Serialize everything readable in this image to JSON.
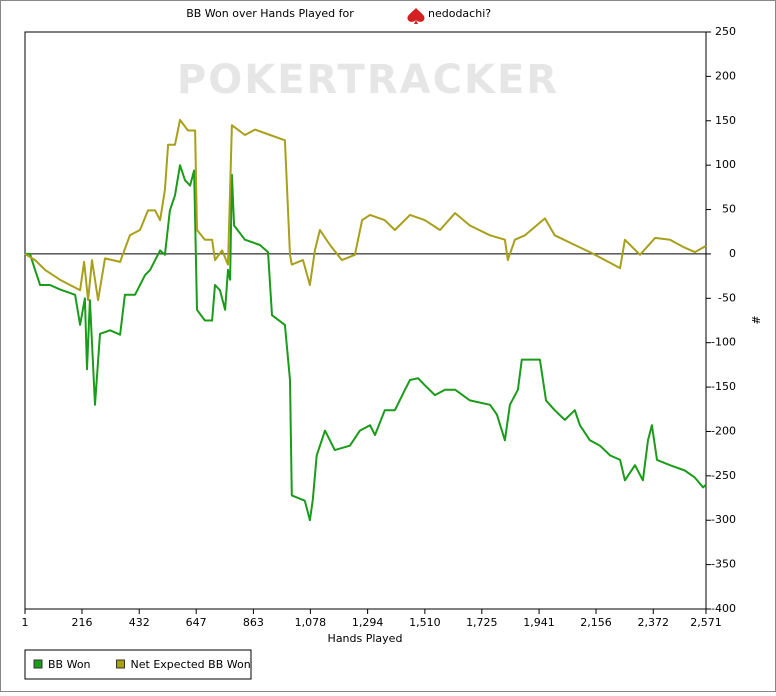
{
  "chart_data": {
    "type": "line",
    "title": "BB Won over Hands Played for",
    "player": "nedodachi?",
    "watermark": "POKERTRACKER",
    "x_label": "Hands Played",
    "y_label": "#",
    "xlim": [
      1,
      2571
    ],
    "ylim": [
      -400,
      250
    ],
    "xticks": [
      1,
      216,
      432,
      647,
      863,
      {
        "value": 1078,
        "label": "1,078"
      },
      {
        "value": 1294,
        "label": "1,294"
      },
      {
        "value": 1510,
        "label": "1,510"
      },
      {
        "value": 1725,
        "label": "1,725"
      },
      {
        "value": 1941,
        "label": "1,941"
      },
      {
        "value": 2156,
        "label": "2,156"
      },
      {
        "value": 2372,
        "label": "2,372"
      },
      {
        "value": 2571,
        "label": "2,571"
      }
    ],
    "yticks": [
      -400,
      -350,
      -300,
      -250,
      -200,
      -150,
      -100,
      -50,
      0,
      50,
      100,
      150,
      200,
      250
    ],
    "zero_line": true,
    "legend": "bottom-left",
    "series": [
      {
        "name": "BB Won",
        "color": "#1a9b1a",
        "x": [
          1,
          20,
          39,
          58,
          95,
          133,
          190,
          209,
          227,
          235,
          246,
          265,
          284,
          322,
          360,
          378,
          416,
          454,
          473,
          511,
          529,
          548,
          567,
          586,
          605,
          624,
          639,
          650,
          680,
          707,
          718,
          737,
          756,
          767,
          775,
          782,
          790,
          831,
          888,
          918,
          933,
          982,
          1001,
          1008,
          1057,
          1076,
          1087,
          1102,
          1133,
          1170,
          1227,
          1265,
          1303,
          1322,
          1359,
          1397,
          1435,
          1454,
          1484,
          1510,
          1548,
          1586,
          1624,
          1680,
          1756,
          1782,
          1812,
          1831,
          1861,
          1876,
          1906,
          1944,
          1967,
          2000,
          2038,
          2076,
          2095,
          2133,
          2171,
          2209,
          2247,
          2265,
          2303,
          2333,
          2352,
          2367,
          2386,
          2435,
          2491,
          2529,
          2560,
          2571
        ],
        "values": [
          0,
          0,
          -18,
          -35,
          -35,
          -40,
          -46,
          -80,
          -50,
          -130,
          -52,
          -170,
          -90,
          -86,
          -91,
          -46,
          -46,
          -24,
          -18,
          4,
          -1,
          49,
          66,
          100,
          83,
          77,
          94,
          -63,
          -75,
          -75,
          -35,
          -41,
          -63,
          -18,
          -29,
          89,
          32,
          16,
          10,
          2,
          -69,
          -80,
          -142,
          -272,
          -278,
          -300,
          -277,
          -227,
          -199,
          -221,
          -216,
          -199,
          -193,
          -204,
          -176,
          -176,
          -153,
          -142,
          -140,
          -148,
          -159,
          -153,
          -153,
          -165,
          -170,
          -181,
          -210,
          -170,
          -153,
          -119,
          -119,
          -119,
          -165,
          -176,
          -187,
          -176,
          -193,
          -210,
          -216,
          -227,
          -232,
          -255,
          -238,
          -255,
          -210,
          -193,
          -232,
          -238,
          -244,
          -252,
          -263,
          -260
        ]
      },
      {
        "name": "Net Expected BB Won",
        "color": "#a8a01a",
        "x": [
          1,
          39,
          77,
          133,
          209,
          224,
          239,
          254,
          277,
          303,
          360,
          397,
          435,
          465,
          492,
          511,
          529,
          541,
          567,
          586,
          616,
          643,
          650,
          680,
          707,
          718,
          745,
          767,
          782,
          831,
          869,
          926,
          982,
          1001,
          1008,
          1050,
          1076,
          1095,
          1114,
          1152,
          1197,
          1246,
          1273,
          1303,
          1359,
          1397,
          1454,
          1510,
          1567,
          1624,
          1680,
          1756,
          1812,
          1823,
          1850,
          1888,
          1963,
          2000,
          2076,
          2133,
          2190,
          2247,
          2265,
          2322,
          2379,
          2435,
          2491,
          2529,
          2571
        ],
        "values": [
          0,
          -7,
          -18,
          -29,
          -41,
          -9,
          -52,
          -7,
          -52,
          -5,
          -9,
          21,
          27,
          49,
          49,
          38,
          72,
          123,
          123,
          151,
          139,
          139,
          27,
          16,
          16,
          -7,
          4,
          -12,
          145,
          134,
          140,
          134,
          128,
          -1,
          -12,
          -7,
          -35,
          4,
          27,
          10,
          -7,
          -1,
          38,
          44,
          38,
          27,
          44,
          38,
          27,
          46,
          32,
          21,
          16,
          -7,
          16,
          21,
          40,
          21,
          10,
          2,
          -7,
          -16,
          16,
          -1,
          18,
          16,
          7,
          2,
          9
        ]
      }
    ]
  }
}
